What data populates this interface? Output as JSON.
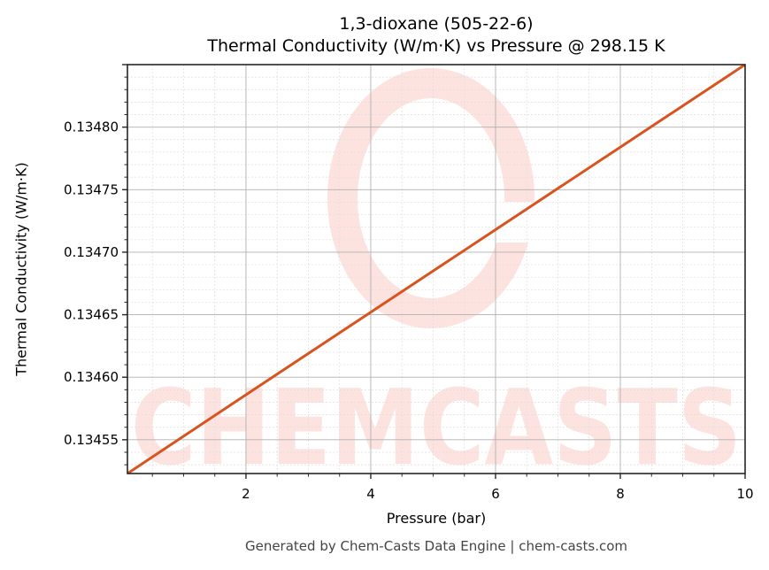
{
  "title": {
    "line1": "1,3-dioxane (505-22-6)",
    "line2": "Thermal Conductivity (W/m·K) vs Pressure @ 298.15 K"
  },
  "footer": "Generated by Chem-Casts Data Engine | chem-casts.com",
  "watermark": "CHEMCASTS",
  "colors": {
    "line": "#d9531e",
    "watermark": "#fde3e0",
    "major_grid": "#b0b0b0",
    "minor_grid": "#dddddd",
    "axes": "#262626",
    "footer_text": "#444444"
  },
  "chart_data": {
    "type": "line",
    "title": "1,3-dioxane (505-22-6)\nThermal Conductivity (W/m·K) vs Pressure @ 298.15 K",
    "xlabel": "Pressure (bar)",
    "ylabel": "Thermal Conductivity (W/m·K)",
    "xlim": [
      0.1,
      10
    ],
    "ylim": [
      0.134523,
      0.13485
    ],
    "xticks": [
      2,
      4,
      6,
      8,
      10
    ],
    "xtick_labels": [
      "2",
      "4",
      "6",
      "8",
      "10"
    ],
    "yticks": [
      0.13455,
      0.1346,
      0.13465,
      0.1347,
      0.13475,
      0.1348
    ],
    "ytick_labels": [
      "0.13455",
      "0.13460",
      "0.13465",
      "0.13470",
      "0.13475",
      "0.13480"
    ],
    "grid": true,
    "minor_grid": true,
    "legend": null,
    "series": [
      {
        "name": "Thermal Conductivity",
        "color": "#d9531e",
        "x": [
          0.1,
          2,
          4,
          6,
          8,
          10
        ],
        "y": [
          0.134523,
          0.134586,
          0.134652,
          0.134718,
          0.134784,
          0.13485
        ]
      }
    ]
  }
}
